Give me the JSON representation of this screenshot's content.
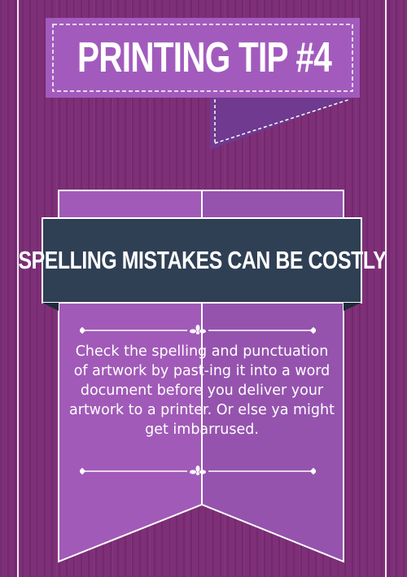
{
  "title": "PRINTING TIP #4",
  "headline": "SPELLING MISTAKES CAN BE COSTLY",
  "body": "Check the spelling and punctuation of artwork by past-ing it into a word document before you deliver your artwork to a printer. Or else ya might get imbarrused.",
  "divider_icons": [
    "fleur-ornament-icon",
    "fleur-ornament-icon"
  ],
  "colors": {
    "background": "#7e2f78",
    "ribbon": "#a25bbd",
    "ribbon_dark": "#6f3a8f",
    "headline_band": "#2f3f54",
    "frame": "#f2e9f3"
  }
}
